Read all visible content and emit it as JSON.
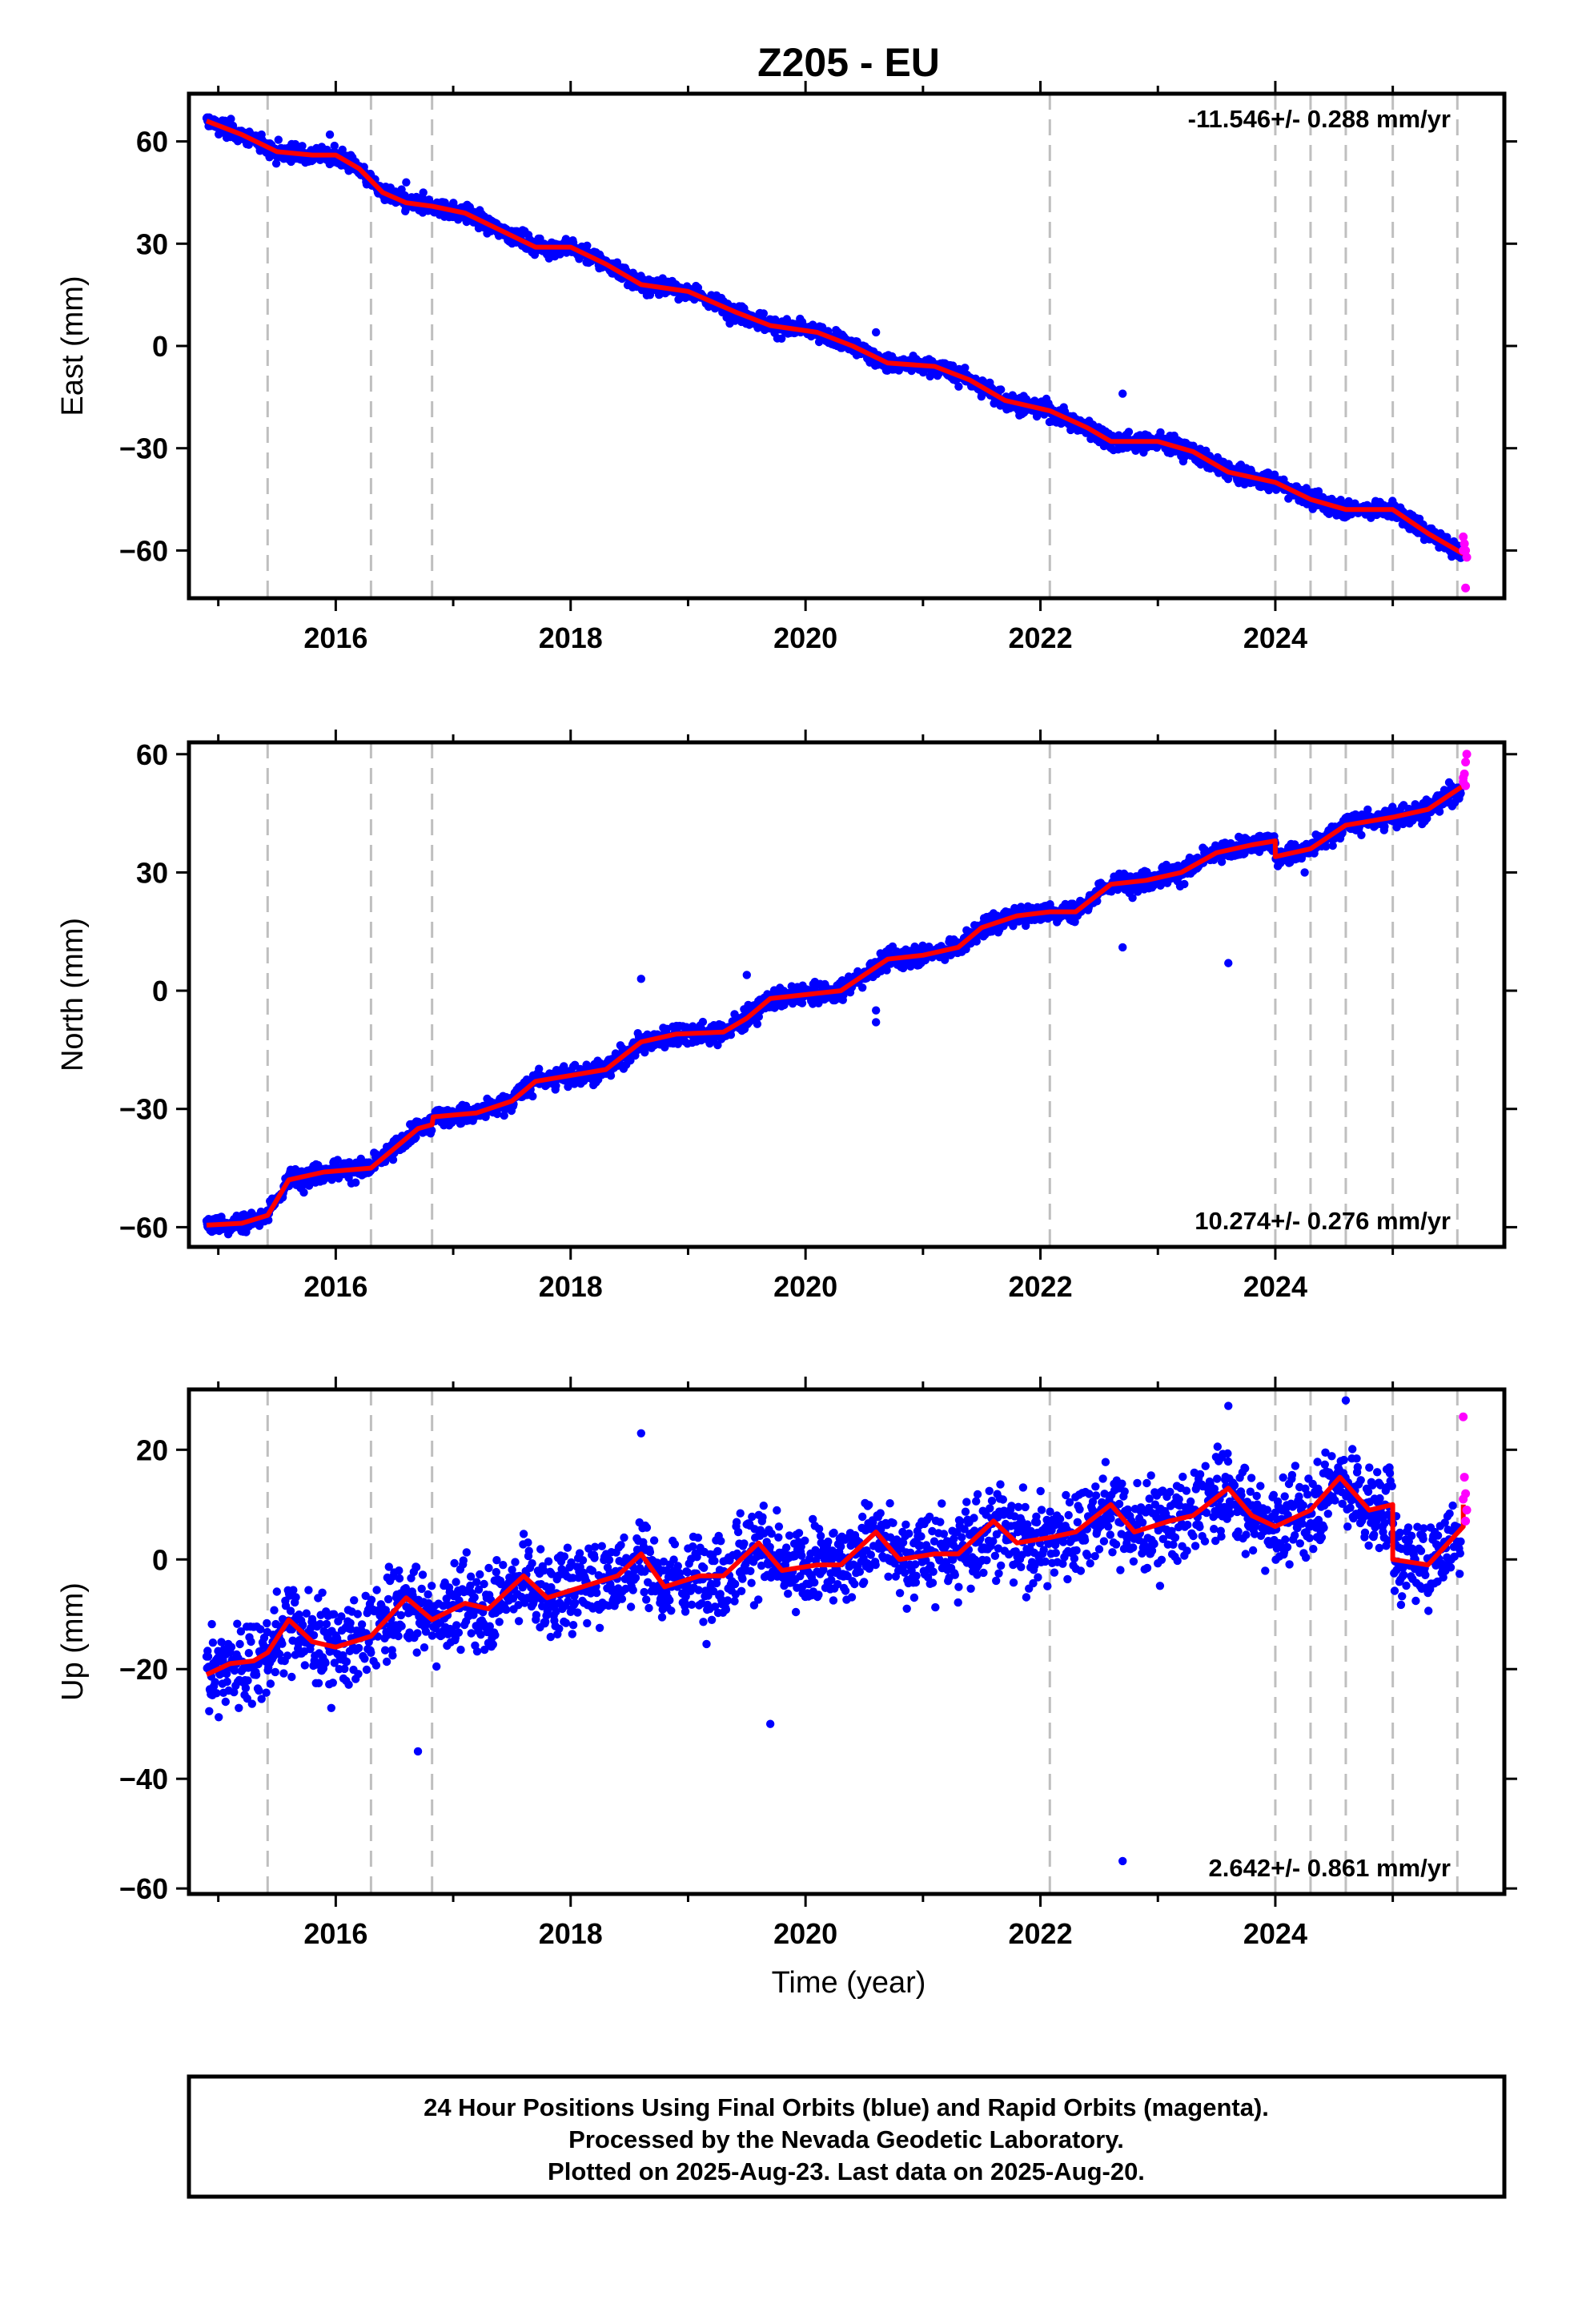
{
  "title": "Z205 - EU",
  "chart_data": {
    "type": "scatter",
    "title": "Z205 - EU",
    "xlabel": "Time (year)",
    "xlim": [
      2014.75,
      2025.95
    ],
    "x_ticks": [
      2016,
      2018,
      2020,
      2022,
      2024
    ],
    "x_tick_labels": [
      "2016",
      "2018",
      "2020",
      "2022",
      "2024"
    ],
    "grid": false,
    "equipment_change_lines": [
      2015.42,
      2016.3,
      2016.82,
      2022.08,
      2024.0,
      2024.3,
      2024.6,
      2025.0,
      2025.55
    ],
    "series_colors": {
      "final": "#0000ff",
      "rapid": "#ff00ff",
      "model": "#ff0000",
      "event_line": "#bfbfbf"
    },
    "panels": [
      {
        "id": "east",
        "ylabel": "East (mm)",
        "ylim": [
          -74,
          74
        ],
        "y_ticks": [
          60,
          30,
          0,
          -30,
          -60
        ],
        "y_tick_labels": [
          "60",
          "30",
          "0",
          "−30",
          "−60"
        ],
        "rate_text": "-11.546+/- 0.288 mm/yr",
        "rate_position": "top-right",
        "model": [
          [
            2014.9,
            66
          ],
          [
            2015.2,
            62
          ],
          [
            2015.5,
            57
          ],
          [
            2015.8,
            56
          ],
          [
            2016.0,
            56
          ],
          [
            2016.2,
            52
          ],
          [
            2016.4,
            45
          ],
          [
            2016.6,
            42
          ],
          [
            2016.82,
            41
          ],
          [
            2017.1,
            39
          ],
          [
            2017.4,
            34
          ],
          [
            2017.7,
            29
          ],
          [
            2018.0,
            29
          ],
          [
            2018.3,
            24
          ],
          [
            2018.6,
            18
          ],
          [
            2019.0,
            16
          ],
          [
            2019.4,
            10
          ],
          [
            2019.7,
            6
          ],
          [
            2020.1,
            4
          ],
          [
            2020.4,
            0
          ],
          [
            2020.7,
            -5
          ],
          [
            2021.1,
            -6
          ],
          [
            2021.4,
            -10
          ],
          [
            2021.7,
            -16
          ],
          [
            2022.08,
            -19
          ],
          [
            2022.4,
            -24
          ],
          [
            2022.6,
            -28
          ],
          [
            2023.0,
            -28
          ],
          [
            2023.3,
            -31
          ],
          [
            2023.6,
            -37
          ],
          [
            2024.0,
            -40
          ],
          [
            2024.3,
            -45
          ],
          [
            2024.6,
            -48
          ],
          [
            2025.0,
            -48
          ],
          [
            2025.3,
            -55
          ],
          [
            2025.6,
            -61
          ]
        ],
        "final": {
          "scatter_sd": 1.8,
          "outliers": [
            [
              2020.6,
              4
            ],
            [
              2022.7,
              -14
            ],
            [
              2016.6,
              48
            ],
            [
              2015.95,
              62
            ]
          ]
        },
        "rapid": [
          [
            2025.6,
            -56
          ],
          [
            2025.61,
            -58
          ],
          [
            2025.62,
            -60
          ],
          [
            2025.63,
            -62
          ],
          [
            2025.62,
            -71
          ],
          [
            2025.6,
            -60
          ]
        ]
      },
      {
        "id": "north",
        "ylabel": "North (mm)",
        "ylim": [
          -65,
          63
        ],
        "y_ticks": [
          60,
          30,
          0,
          -30,
          -60
        ],
        "y_tick_labels": [
          "60",
          "30",
          "0",
          "−30",
          "−60"
        ],
        "rate_text": "10.274+/- 0.276 mm/yr",
        "rate_position": "bottom-right",
        "model": [
          [
            2014.9,
            -59.5
          ],
          [
            2015.2,
            -59
          ],
          [
            2015.42,
            -57
          ],
          [
            2015.6,
            -48
          ],
          [
            2015.9,
            -46
          ],
          [
            2016.3,
            -45
          ],
          [
            2016.5,
            -40
          ],
          [
            2016.7,
            -35
          ],
          [
            2016.82,
            -34
          ],
          [
            2016.83,
            -32
          ],
          [
            2017.2,
            -31
          ],
          [
            2017.5,
            -28
          ],
          [
            2017.7,
            -23
          ],
          [
            2018.0,
            -21.5
          ],
          [
            2018.3,
            -20
          ],
          [
            2018.6,
            -13
          ],
          [
            2018.9,
            -11
          ],
          [
            2019.3,
            -10.5
          ],
          [
            2019.5,
            -7
          ],
          [
            2019.7,
            -2
          ],
          [
            2020.0,
            -1
          ],
          [
            2020.3,
            0
          ],
          [
            2020.5,
            4
          ],
          [
            2020.7,
            8
          ],
          [
            2021.0,
            9
          ],
          [
            2021.3,
            11
          ],
          [
            2021.5,
            16
          ],
          [
            2021.8,
            19
          ],
          [
            2022.08,
            20
          ],
          [
            2022.3,
            20
          ],
          [
            2022.6,
            27
          ],
          [
            2022.9,
            28
          ],
          [
            2023.2,
            30
          ],
          [
            2023.5,
            35
          ],
          [
            2023.8,
            37
          ],
          [
            2024.0,
            38
          ],
          [
            2024.0,
            34
          ],
          [
            2024.3,
            36
          ],
          [
            2024.6,
            42
          ],
          [
            2025.0,
            44
          ],
          [
            2025.3,
            46
          ],
          [
            2025.6,
            52
          ]
        ],
        "final": {
          "scatter_sd": 1.8,
          "outliers": [
            [
              2018.6,
              3
            ],
            [
              2019.5,
              4
            ],
            [
              2020.6,
              -5
            ],
            [
              2020.6,
              -8
            ],
            [
              2022.7,
              11
            ],
            [
              2023.6,
              7
            ],
            [
              2024.25,
              30
            ]
          ]
        },
        "rapid": [
          [
            2025.6,
            53
          ],
          [
            2025.61,
            55
          ],
          [
            2025.62,
            58
          ],
          [
            2025.63,
            60
          ],
          [
            2025.62,
            52
          ],
          [
            2025.6,
            54
          ]
        ]
      },
      {
        "id": "up",
        "ylabel": "Up (mm)",
        "ylim": [
          -61,
          31
        ],
        "y_ticks": [
          20,
          0,
          -20,
          -40,
          -60
        ],
        "y_tick_labels": [
          "20",
          "0",
          "−20",
          "−40",
          "−60"
        ],
        "rate_text": "2.642+/- 0.861 mm/yr",
        "rate_position": "bottom-right",
        "model": [
          [
            2014.9,
            -21
          ],
          [
            2015.1,
            -19
          ],
          [
            2015.3,
            -18.5
          ],
          [
            2015.42,
            -17
          ],
          [
            2015.6,
            -11
          ],
          [
            2015.8,
            -15
          ],
          [
            2016.0,
            -16
          ],
          [
            2016.3,
            -14
          ],
          [
            2016.6,
            -7
          ],
          [
            2016.82,
            -11
          ],
          [
            2017.1,
            -8
          ],
          [
            2017.3,
            -9
          ],
          [
            2017.6,
            -3
          ],
          [
            2017.8,
            -7
          ],
          [
            2018.1,
            -5
          ],
          [
            2018.4,
            -3
          ],
          [
            2018.6,
            1
          ],
          [
            2018.8,
            -5
          ],
          [
            2019.1,
            -3
          ],
          [
            2019.3,
            -3
          ],
          [
            2019.6,
            3
          ],
          [
            2019.8,
            -2
          ],
          [
            2020.1,
            -1
          ],
          [
            2020.3,
            -1
          ],
          [
            2020.6,
            5
          ],
          [
            2020.8,
            0
          ],
          [
            2021.1,
            1
          ],
          [
            2021.3,
            1
          ],
          [
            2021.6,
            7
          ],
          [
            2021.8,
            3
          ],
          [
            2022.08,
            4
          ],
          [
            2022.3,
            5
          ],
          [
            2022.6,
            10
          ],
          [
            2022.8,
            5
          ],
          [
            2023.1,
            7
          ],
          [
            2023.3,
            8
          ],
          [
            2023.6,
            13
          ],
          [
            2023.8,
            8
          ],
          [
            2024.0,
            6
          ],
          [
            2024.3,
            9
          ],
          [
            2024.55,
            15
          ],
          [
            2024.8,
            9
          ],
          [
            2025.0,
            10
          ],
          [
            2025.0,
            0
          ],
          [
            2025.3,
            -1
          ],
          [
            2025.6,
            6
          ],
          [
            2025.6,
            10
          ]
        ],
        "final": {
          "scatter_sd": 5.5,
          "outliers": [
            [
              2019.7,
              -30
            ],
            [
              2016.7,
              -35
            ],
            [
              2022.7,
              -55
            ],
            [
              2018.6,
              23
            ],
            [
              2023.6,
              28
            ],
            [
              2024.6,
              29
            ]
          ]
        },
        "rapid": [
          [
            2025.6,
            26
          ],
          [
            2025.61,
            15
          ],
          [
            2025.62,
            12
          ],
          [
            2025.63,
            9
          ],
          [
            2025.62,
            7
          ],
          [
            2025.6,
            11
          ]
        ]
      }
    ]
  },
  "footer": {
    "line1": "24 Hour Positions Using Final Orbits (blue) and Rapid Orbits (magenta).",
    "line2": "Processed by the Nevada Geodetic Laboratory.",
    "line3": "Plotted on 2025-Aug-23. Last data on 2025-Aug-20."
  }
}
